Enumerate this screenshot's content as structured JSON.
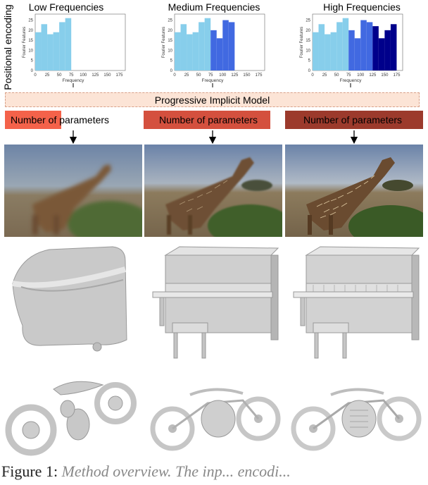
{
  "side_label": "Positional encoding",
  "charts": [
    {
      "title": "Low Frequencies",
      "ylabel": "Fourier Features",
      "xlabel": "Frequency",
      "yticks": [
        "25",
        "20",
        "15",
        "10",
        "5",
        "0"
      ],
      "xticks": [
        "0",
        "25",
        "50",
        "75",
        "100",
        "125",
        "150",
        "175"
      ],
      "x": [
        0,
        12.5,
        25,
        37.5,
        50,
        62.5
      ],
      "values": [
        19,
        23,
        18,
        19,
        24,
        26
      ],
      "band_colors": [
        "#87ceeb"
      ]
    },
    {
      "title": "Medium Frequencies",
      "ylabel": "Fourier Features",
      "xlabel": "Frequency",
      "yticks": [
        "25",
        "20",
        "15",
        "10",
        "5",
        "0"
      ],
      "xticks": [
        "0",
        "25",
        "50",
        "75",
        "100",
        "125",
        "150",
        "175"
      ],
      "x": [
        0,
        12.5,
        25,
        37.5,
        50,
        62.5,
        75,
        87.5,
        100,
        112.5
      ],
      "values": [
        19,
        23,
        18,
        19,
        24,
        26,
        20,
        16,
        25,
        24
      ],
      "band_colors": [
        "#87ceeb",
        "#87ceeb",
        "#87ceeb",
        "#87ceeb",
        "#87ceeb",
        "#87ceeb",
        "#4169e1",
        "#4169e1",
        "#4169e1",
        "#4169e1"
      ]
    },
    {
      "title": "High Frequencies",
      "ylabel": "Fourier Features",
      "xlabel": "Frequency",
      "yticks": [
        "25",
        "20",
        "15",
        "10",
        "5",
        "0"
      ],
      "xticks": [
        "0",
        "25",
        "50",
        "75",
        "100",
        "125",
        "150",
        "175"
      ],
      "x": [
        0,
        12.5,
        25,
        37.5,
        50,
        62.5,
        75,
        87.5,
        100,
        112.5,
        125,
        137.5,
        150,
        162.5
      ],
      "values": [
        19,
        23,
        18,
        19,
        24,
        26,
        20,
        16,
        25,
        24,
        22,
        16,
        20,
        23
      ],
      "band_colors": [
        "#87ceeb",
        "#87ceeb",
        "#87ceeb",
        "#87ceeb",
        "#87ceeb",
        "#87ceeb",
        "#4169e1",
        "#4169e1",
        "#4169e1",
        "#4169e1",
        "#00008b",
        "#00008b",
        "#00008b",
        "#00008b"
      ]
    }
  ],
  "model_label": "Progressive Implicit Model",
  "params": [
    {
      "label": "Number of parameters",
      "fill": 0.42,
      "color": "#f4624a"
    },
    {
      "label": "Number of parameters",
      "fill": 1.0,
      "color": "#d4503e"
    },
    {
      "label": "Number of parameters",
      "fill": 1.0,
      "color": "#9c3a2c"
    }
  ],
  "caption": {
    "lead": "Figure 1: ",
    "rest": "Method overview. The inp... encodi..."
  }
}
